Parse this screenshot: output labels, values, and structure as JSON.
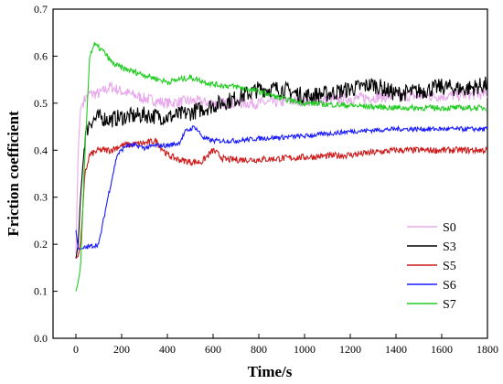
{
  "chart_data": {
    "type": "line",
    "title": "",
    "xlabel": "Time/s",
    "ylabel": "Friction coefficient",
    "xlim": [
      -100,
      1800
    ],
    "ylim": [
      0.0,
      0.7
    ],
    "xticks": [
      0,
      200,
      400,
      600,
      800,
      1000,
      1200,
      1400,
      1600,
      1800
    ],
    "yticks": [
      0.0,
      0.1,
      0.2,
      0.3,
      0.4,
      0.5,
      0.6,
      0.7
    ],
    "grid": false,
    "legend_position": "bottom-right",
    "series": [
      {
        "name": "S0",
        "color": "#e8a8ec",
        "noise": 0.012,
        "x": [
          0,
          10,
          20,
          40,
          60,
          100,
          150,
          200,
          300,
          400,
          500,
          600,
          700,
          800,
          1000,
          1200,
          1400,
          1600,
          1800
        ],
        "y": [
          0.18,
          0.4,
          0.49,
          0.51,
          0.52,
          0.52,
          0.535,
          0.525,
          0.51,
          0.5,
          0.505,
          0.5,
          0.5,
          0.5,
          0.505,
          0.51,
          0.515,
          0.515,
          0.52
        ]
      },
      {
        "name": "S3",
        "color": "#000000",
        "noise": 0.018,
        "x": [
          0,
          10,
          20,
          40,
          60,
          100,
          150,
          200,
          300,
          400,
          500,
          600,
          700,
          800,
          900,
          1000,
          1100,
          1200,
          1300,
          1400,
          1500,
          1600,
          1700,
          1800
        ],
        "y": [
          0.17,
          0.2,
          0.3,
          0.43,
          0.46,
          0.47,
          0.465,
          0.47,
          0.475,
          0.47,
          0.48,
          0.495,
          0.51,
          0.53,
          0.53,
          0.515,
          0.52,
          0.53,
          0.54,
          0.52,
          0.525,
          0.535,
          0.53,
          0.54
        ]
      },
      {
        "name": "S5",
        "color": "#cc1a1a",
        "noise": 0.007,
        "x": [
          0,
          10,
          20,
          40,
          60,
          100,
          150,
          200,
          300,
          350,
          400,
          450,
          500,
          550,
          580,
          600,
          650,
          800,
          1000,
          1200,
          1400,
          1600,
          1800
        ],
        "y": [
          0.17,
          0.175,
          0.2,
          0.35,
          0.39,
          0.4,
          0.4,
          0.41,
          0.415,
          0.42,
          0.39,
          0.38,
          0.375,
          0.375,
          0.39,
          0.4,
          0.38,
          0.38,
          0.385,
          0.39,
          0.4,
          0.4,
          0.4
        ]
      },
      {
        "name": "S6",
        "color": "#1a1aff",
        "noise": 0.005,
        "x": [
          0,
          10,
          20,
          60,
          100,
          140,
          180,
          220,
          260,
          300,
          350,
          400,
          450,
          480,
          520,
          560,
          600,
          700,
          800,
          1000,
          1200,
          1400,
          1600,
          1800
        ],
        "y": [
          0.23,
          0.19,
          0.19,
          0.195,
          0.2,
          0.3,
          0.39,
          0.41,
          0.41,
          0.405,
          0.41,
          0.41,
          0.415,
          0.44,
          0.45,
          0.425,
          0.42,
          0.42,
          0.425,
          0.43,
          0.44,
          0.445,
          0.445,
          0.445
        ]
      },
      {
        "name": "S7",
        "color": "#22cc22",
        "noise": 0.006,
        "x": [
          0,
          10,
          20,
          40,
          60,
          80,
          120,
          160,
          200,
          300,
          400,
          500,
          600,
          700,
          800,
          900,
          1000,
          1200,
          1400,
          1600,
          1800
        ],
        "y": [
          0.1,
          0.12,
          0.15,
          0.4,
          0.6,
          0.625,
          0.61,
          0.585,
          0.575,
          0.56,
          0.545,
          0.555,
          0.54,
          0.535,
          0.525,
          0.51,
          0.5,
          0.495,
          0.49,
          0.49,
          0.49
        ]
      }
    ]
  }
}
